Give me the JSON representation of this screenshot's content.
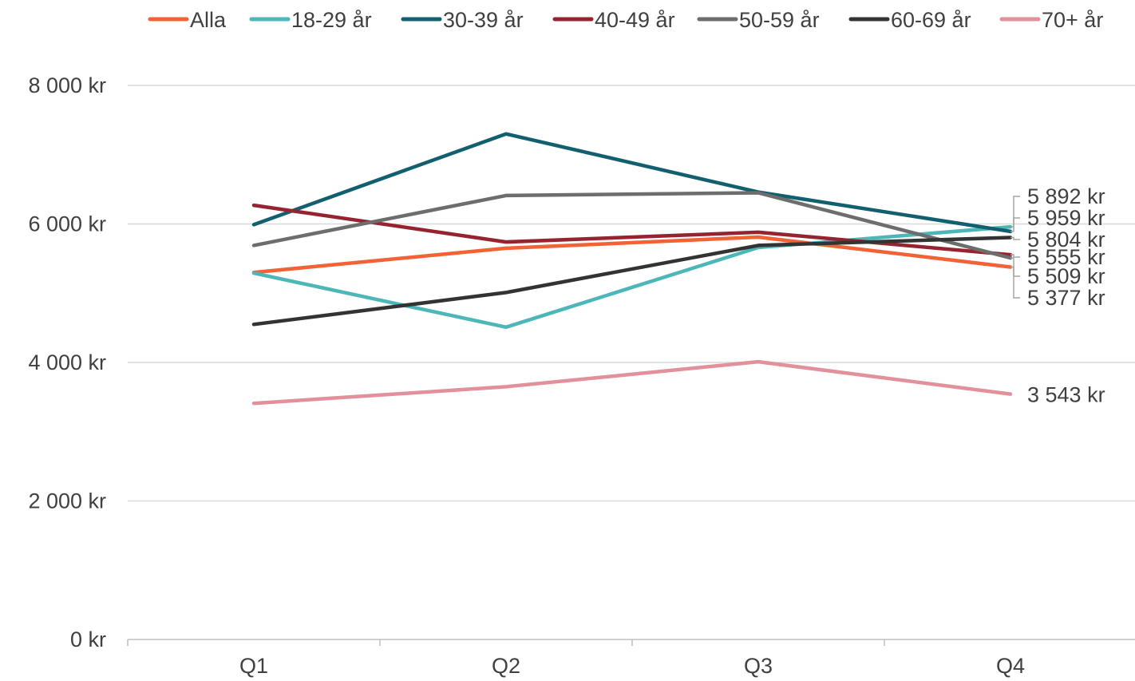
{
  "chart_data": {
    "type": "line",
    "categories": [
      "Q1",
      "Q2",
      "Q3",
      "Q4"
    ],
    "ylim": [
      0,
      8000
    ],
    "yticks": [
      {
        "value": 0,
        "label": "0 kr"
      },
      {
        "value": 2000,
        "label": "2 000 kr"
      },
      {
        "value": 4000,
        "label": "4 000 kr"
      },
      {
        "value": 6000,
        "label": "6 000 kr"
      },
      {
        "value": 8000,
        "label": "8 000 kr"
      }
    ],
    "grid": true,
    "legend_position": "top",
    "series": [
      {
        "name": "Alla",
        "color": "#f26235",
        "values": [
          5300,
          5650,
          5810,
          5377
        ]
      },
      {
        "name": "18-29 år",
        "color": "#4db6b8",
        "values": [
          5290,
          4510,
          5660,
          5959
        ]
      },
      {
        "name": "30-39 år",
        "color": "#12606f",
        "values": [
          5990,
          7300,
          6460,
          5892
        ]
      },
      {
        "name": "40-49 år",
        "color": "#962330",
        "values": [
          6270,
          5740,
          5880,
          5555
        ]
      },
      {
        "name": "50-59 år",
        "color": "#6d6d6d",
        "values": [
          5690,
          6410,
          6450,
          5509
        ]
      },
      {
        "name": "60-69 år",
        "color": "#333333",
        "values": [
          4550,
          5010,
          5690,
          5804
        ]
      },
      {
        "name": "70+ år",
        "color": "#e2909a",
        "values": [
          3410,
          3650,
          4010,
          3543
        ]
      }
    ],
    "end_labels": [
      {
        "text": "5 892 kr",
        "value": 5892
      },
      {
        "text": "5 959 kr",
        "value": 5959
      },
      {
        "text": "5 804 kr",
        "value": 5804
      },
      {
        "text": "5 555 kr",
        "value": 5555
      },
      {
        "text": "5 509 kr",
        "value": 5509
      },
      {
        "text": "5 377 kr",
        "value": 5377
      },
      {
        "text": "3 543 kr",
        "value": 3543
      }
    ]
  }
}
